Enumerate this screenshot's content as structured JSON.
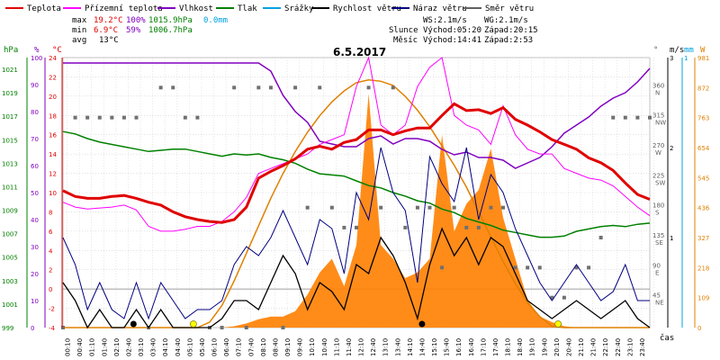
{
  "chart_data": {
    "type": "line",
    "title": "6.5.2017",
    "legend": [
      {
        "label": "Teplota",
        "color": "#e00000"
      },
      {
        "label": "Přízemní teplota",
        "color": "#ff00ff"
      },
      {
        "label": "Vlhkost",
        "color": "#8000c0"
      },
      {
        "label": "Tlak",
        "color": "#008000"
      },
      {
        "label": "Srážky",
        "color": "#00a0e0"
      },
      {
        "label": "Rychlost větru",
        "color": "#000000"
      },
      {
        "label": "Náraz větru",
        "color": "#000080"
      },
      {
        "label": "Směr větru",
        "color": "#606060"
      }
    ],
    "stats": {
      "max": {
        "label": "max",
        "temp": "19.2°C",
        "hum": "100%",
        "press": "1015.9hPa",
        "rain": "0.0mm"
      },
      "min": {
        "label": "min",
        "temp": "6.9°C",
        "hum": "59%",
        "press": "1006.7hPa"
      },
      "avg": {
        "label": "avg",
        "temp": "13°C"
      }
    },
    "wind_info": {
      "ws": "WS:2.1m/s",
      "wg": "WG:2.1m/s"
    },
    "sun_info": {
      "label": "Slunce",
      "rise": "Východ:05:20",
      "set": "Západ:20:15"
    },
    "moon_info": {
      "label": "Měsíc",
      "rise": "Východ:14:41",
      "set": "Západ:2:53"
    },
    "axis_units": {
      "press": "hPa",
      "hum": "%",
      "temp": "°C",
      "dir": "°",
      "wind": "m/s",
      "rain": "mm",
      "light": "W",
      "x": "čas"
    },
    "x_ticks": [
      "00:10",
      "00:40",
      "01:10",
      "01:40",
      "02:10",
      "02:40",
      "03:10",
      "03:40",
      "04:10",
      "04:40",
      "05:10",
      "05:40",
      "06:10",
      "06:40",
      "07:10",
      "07:40",
      "08:10",
      "08:40",
      "09:10",
      "09:40",
      "10:10",
      "10:40",
      "11:10",
      "11:40",
      "12:10",
      "12:40",
      "13:10",
      "13:40",
      "14:10",
      "14:40",
      "15:10",
      "15:40",
      "16:10",
      "16:40",
      "17:10",
      "17:40",
      "18:10",
      "18:40",
      "19:10",
      "19:40",
      "20:10",
      "20:40",
      "21:10",
      "21:40",
      "22:10",
      "22:40",
      "23:10",
      "23:40"
    ],
    "press_ticks": [
      "1021",
      "1019",
      "1017",
      "1015",
      "1013",
      "1011",
      "1009",
      "1007",
      "1005",
      "1003",
      "1001",
      "999"
    ],
    "hum_ticks": [
      "100",
      "90",
      "80",
      "70",
      "60",
      "50",
      "40",
      "30",
      "20",
      "10",
      "0"
    ],
    "temp_ticks": [
      "24",
      "22",
      "20",
      "18",
      "16",
      "14",
      "12",
      "10",
      "8",
      "6",
      "4",
      "2",
      "0",
      "-2",
      "-4"
    ],
    "dir_ticks": [
      {
        "deg": "360",
        "card": "N"
      },
      {
        "deg": "315",
        "card": "NW"
      },
      {
        "deg": "270",
        "card": "W"
      },
      {
        "deg": "225",
        "card": "SW"
      },
      {
        "deg": "180",
        "card": "S"
      },
      {
        "deg": "135",
        "card": "SE"
      },
      {
        "deg": "90",
        "card": "E"
      },
      {
        "deg": "45",
        "card": "NE"
      }
    ],
    "wind_ticks": [
      "3",
      "2",
      "1"
    ],
    "rain_ticks": [
      "1"
    ],
    "light_ticks": [
      "981",
      "872",
      "763",
      "654",
      "545",
      "436",
      "327",
      "218",
      "109",
      "0"
    ],
    "y_ranges": {
      "temp": [
        -4,
        24
      ],
      "hum": [
        0,
        100
      ],
      "press": [
        999,
        1022
      ],
      "wind": [
        0,
        3
      ],
      "light": [
        0,
        981
      ],
      "dir": [
        0,
        405
      ]
    },
    "hours": [
      0,
      0.5,
      1,
      1.5,
      2,
      2.5,
      3,
      3.5,
      4,
      4.5,
      5,
      5.5,
      6,
      6.5,
      7,
      7.5,
      8,
      8.5,
      9,
      9.5,
      10,
      10.5,
      11,
      11.5,
      12,
      12.5,
      13,
      13.5,
      14,
      14.5,
      15,
      15.5,
      16,
      16.5,
      17,
      17.5,
      18,
      18.5,
      19,
      19.5,
      20,
      20.5,
      21,
      21.5,
      22,
      22.5,
      23,
      23.5,
      24
    ],
    "temperature": [
      10.2,
      9.6,
      9.4,
      9.4,
      9.6,
      9.7,
      9.4,
      9.0,
      8.7,
      8.0,
      7.5,
      7.2,
      7.0,
      6.9,
      7.2,
      8.5,
      11.5,
      12.2,
      12.8,
      13.5,
      14.5,
      14.8,
      14.5,
      15.2,
      15.5,
      16.5,
      16.5,
      16.0,
      16.4,
      16.7,
      16.7,
      18.0,
      19.2,
      18.5,
      18.6,
      18.2,
      18.8,
      17.6,
      17.0,
      16.3,
      15.5,
      15.0,
      14.5,
      13.6,
      13.1,
      12.3,
      11.0,
      9.8,
      9.3
    ],
    "ground_temperature": [
      9.0,
      8.5,
      8.3,
      8.4,
      8.5,
      8.7,
      8.2,
      6.5,
      6.0,
      6.0,
      6.2,
      6.5,
      6.5,
      7.0,
      8.0,
      9.5,
      12.0,
      12.5,
      13.0,
      13.5,
      14.0,
      15.0,
      15.5,
      16.0,
      21.0,
      24.0,
      17.0,
      16.0,
      17.0,
      21.0,
      23.0,
      24.0,
      18.0,
      17.0,
      16.5,
      15.0,
      19.0,
      16.0,
      14.5,
      14.0,
      14.0,
      12.5,
      12.0,
      11.5,
      11.3,
      10.7,
      9.6,
      8.5,
      7.6
    ],
    "humidity": [
      98,
      98,
      98,
      98,
      98,
      98,
      98,
      98,
      98,
      98,
      98,
      98,
      98,
      98,
      98,
      98,
      98,
      95,
      86,
      80,
      76,
      69,
      68,
      67,
      67,
      70,
      71,
      68,
      70,
      70,
      69,
      66,
      64,
      65,
      63,
      63,
      62,
      59,
      61,
      63,
      67,
      72,
      75,
      78,
      82,
      85,
      87,
      91,
      96
    ],
    "pressure": [
      1015.7,
      1015.5,
      1015.1,
      1014.8,
      1014.6,
      1014.4,
      1014.2,
      1014.0,
      1014.1,
      1014.2,
      1014.2,
      1014.0,
      1013.8,
      1013.6,
      1013.8,
      1013.7,
      1013.8,
      1013.5,
      1013.3,
      1013.0,
      1012.5,
      1012.1,
      1012.0,
      1011.9,
      1011.5,
      1011.1,
      1010.9,
      1010.5,
      1010.2,
      1009.8,
      1009.6,
      1009.1,
      1008.8,
      1008.3,
      1008.0,
      1007.7,
      1007.3,
      1007.1,
      1006.9,
      1006.7,
      1006.7,
      1006.8,
      1007.2,
      1007.4,
      1007.6,
      1007.7,
      1007.6,
      1007.8,
      1007.9
    ],
    "wind_speed": [
      0.5,
      0.3,
      0.0,
      0.2,
      0.0,
      0.0,
      0.2,
      0.0,
      0.2,
      0.0,
      0.0,
      0.0,
      0.0,
      0.1,
      0.3,
      0.3,
      0.2,
      0.5,
      0.8,
      0.6,
      0.2,
      0.5,
      0.4,
      0.2,
      0.7,
      0.6,
      1.0,
      0.8,
      0.5,
      0.1,
      0.7,
      1.1,
      0.8,
      1.0,
      0.7,
      1.0,
      0.9,
      0.6,
      0.3,
      0.2,
      0.1,
      0.2,
      0.3,
      0.2,
      0.1,
      0.2,
      0.3,
      0.1,
      0.0
    ],
    "wind_gust": [
      1.0,
      0.7,
      0.2,
      0.5,
      0.2,
      0.1,
      0.5,
      0.1,
      0.5,
      0.3,
      0.1,
      0.2,
      0.2,
      0.3,
      0.7,
      0.9,
      0.8,
      1.0,
      1.3,
      1.0,
      0.7,
      1.2,
      1.1,
      0.6,
      1.5,
      1.2,
      2.0,
      1.5,
      1.3,
      0.5,
      1.9,
      1.6,
      1.4,
      2.0,
      1.2,
      1.7,
      1.5,
      1.1,
      0.8,
      0.5,
      0.3,
      0.5,
      0.7,
      0.5,
      0.3,
      0.4,
      0.7,
      0.3,
      0.3
    ],
    "solar_radiation": [
      0,
      0,
      0,
      0,
      0,
      0,
      0,
      0,
      0,
      0,
      0,
      0,
      0,
      0,
      5,
      15,
      30,
      40,
      40,
      60,
      120,
      200,
      250,
      150,
      300,
      850,
      300,
      250,
      180,
      200,
      250,
      700,
      350,
      450,
      500,
      650,
      400,
      250,
      100,
      40,
      20,
      5,
      0,
      0,
      0,
      0,
      0,
      0,
      0
    ],
    "solar_theoretical": [
      0,
      0,
      0,
      0,
      0,
      0,
      0,
      0,
      0,
      0,
      0,
      0,
      20,
      80,
      170,
      270,
      370,
      470,
      560,
      640,
      710,
      770,
      820,
      860,
      890,
      900,
      895,
      880,
      840,
      790,
      730,
      660,
      590,
      510,
      420,
      330,
      240,
      160,
      90,
      40,
      5,
      0,
      0,
      0,
      0,
      0,
      0,
      0,
      0
    ],
    "wind_direction": [
      0,
      315,
      315,
      315,
      315,
      315,
      315,
      0,
      360,
      360,
      315,
      315,
      0,
      0,
      360,
      0,
      360,
      360,
      0,
      360,
      180,
      360,
      180,
      150,
      150,
      360,
      180,
      360,
      150,
      180,
      180,
      90,
      180,
      150,
      150,
      180,
      180,
      90,
      90,
      90,
      45,
      45,
      90,
      90,
      135,
      315,
      315,
      315,
      315
    ]
  }
}
